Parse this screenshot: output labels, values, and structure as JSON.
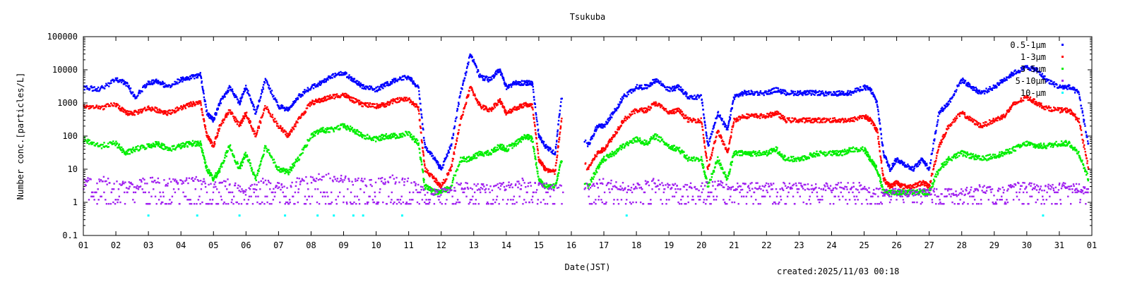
{
  "chart_data": {
    "type": "scatter",
    "title": "Tsukuba",
    "xlabel": "Date(JST)",
    "ylabel": "Number conc.[particles/L]",
    "footer": "created:2025/11/03 00:18",
    "xlim": [
      1,
      32
    ],
    "ylim": [
      0.1,
      100000
    ],
    "yscale": "log",
    "yticks": [
      0.1,
      1,
      10,
      100,
      1000,
      10000,
      100000
    ],
    "ytick_labels": [
      "0.1",
      "1",
      "10",
      "100",
      "1000",
      "10000",
      "100000"
    ],
    "xticks": [
      1,
      2,
      3,
      4,
      5,
      6,
      7,
      8,
      9,
      10,
      11,
      12,
      13,
      14,
      15,
      16,
      17,
      18,
      19,
      20,
      21,
      22,
      23,
      24,
      25,
      26,
      27,
      28,
      29,
      30,
      31,
      32
    ],
    "xtick_labels": [
      "01",
      "02",
      "03",
      "04",
      "05",
      "06",
      "07",
      "08",
      "09",
      "10",
      "11",
      "12",
      "13",
      "14",
      "15",
      "16",
      "17",
      "18",
      "19",
      "20",
      "21",
      "22",
      "23",
      "24",
      "25",
      "26",
      "27",
      "28",
      "29",
      "30",
      "31",
      "01"
    ],
    "gaps": [
      [
        15.75,
        16.4
      ]
    ],
    "legend_position": "top-right",
    "series": [
      {
        "name": "0.5-1μm",
        "color": "#0000ff",
        "x": [
          1,
          1.5,
          2,
          2.3,
          2.6,
          3,
          3.3,
          3.6,
          4,
          4.3,
          4.6,
          4.8,
          5,
          5.2,
          5.5,
          5.8,
          6,
          6.3,
          6.6,
          7,
          7.3,
          7.6,
          8,
          8.3,
          8.6,
          9,
          9.3,
          9.6,
          10,
          10.3,
          10.6,
          11,
          11.3,
          11.5,
          11.8,
          12,
          12.3,
          12.6,
          12.9,
          13.2,
          13.5,
          13.8,
          14,
          14.3,
          14.6,
          14.8,
          15,
          15.2,
          15.5,
          15.7,
          16.5,
          16.8,
          17,
          17.3,
          17.6,
          18,
          18.3,
          18.6,
          19,
          19.3,
          19.6,
          20,
          20.2,
          20.5,
          20.8,
          21,
          21.3,
          21.6,
          22,
          22.3,
          22.6,
          23,
          23.3,
          23.6,
          24,
          24.3,
          24.6,
          25,
          25.2,
          25.4,
          25.6,
          25.8,
          26,
          26.2,
          26.5,
          26.8,
          27,
          27.3,
          27.6,
          28,
          28.3,
          28.6,
          29,
          29.3,
          29.6,
          30,
          30.3,
          30.6,
          31,
          31.3,
          31.6,
          31.9
        ],
        "y": [
          3000,
          2500,
          5000,
          4000,
          1500,
          4000,
          4500,
          3000,
          5000,
          6000,
          7000,
          500,
          300,
          1000,
          3000,
          1000,
          3000,
          500,
          5000,
          800,
          600,
          1500,
          3000,
          4000,
          6000,
          8000,
          5000,
          3000,
          2500,
          3500,
          5000,
          6000,
          3000,
          50,
          20,
          10,
          50,
          2000,
          30000,
          6000,
          5000,
          10000,
          3000,
          4000,
          4000,
          4000,
          100,
          50,
          30,
          1500,
          50,
          200,
          200,
          500,
          1500,
          3000,
          3000,
          5000,
          2500,
          3000,
          1500,
          1500,
          50,
          500,
          150,
          1500,
          2000,
          2000,
          2000,
          2500,
          2000,
          2000,
          2000,
          2000,
          1800,
          2000,
          2000,
          3000,
          2500,
          1000,
          30,
          10,
          20,
          15,
          10,
          20,
          10,
          500,
          1000,
          5000,
          3000,
          2000,
          3000,
          5000,
          8000,
          12000,
          10000,
          5000,
          3000,
          3000,
          2000,
          50
        ]
      },
      {
        "name": "1-3μm",
        "color": "#ff0000",
        "x": [
          1,
          1.5,
          2,
          2.3,
          2.6,
          3,
          3.3,
          3.6,
          4,
          4.3,
          4.6,
          4.8,
          5,
          5.2,
          5.5,
          5.8,
          6,
          6.3,
          6.6,
          7,
          7.3,
          7.6,
          8,
          8.3,
          8.6,
          9,
          9.3,
          9.6,
          10,
          10.3,
          10.6,
          11,
          11.3,
          11.5,
          11.8,
          12,
          12.3,
          12.6,
          12.9,
          13.2,
          13.5,
          13.8,
          14,
          14.3,
          14.6,
          14.8,
          15,
          15.2,
          15.5,
          15.7,
          16.5,
          16.8,
          17,
          17.3,
          17.6,
          18,
          18.3,
          18.6,
          19,
          19.3,
          19.6,
          20,
          20.2,
          20.5,
          20.8,
          21,
          21.3,
          21.6,
          22,
          22.3,
          22.6,
          23,
          23.3,
          23.6,
          24,
          24.3,
          24.6,
          25,
          25.2,
          25.4,
          25.6,
          25.8,
          26,
          26.2,
          26.5,
          26.8,
          27,
          27.3,
          27.6,
          28,
          28.3,
          28.6,
          29,
          29.3,
          29.6,
          30,
          30.3,
          30.6,
          31,
          31.3,
          31.6,
          31.9
        ],
        "y": [
          800,
          700,
          900,
          500,
          500,
          700,
          600,
          500,
          700,
          900,
          1000,
          100,
          50,
          200,
          600,
          200,
          500,
          100,
          800,
          200,
          100,
          300,
          1000,
          1200,
          1500,
          1800,
          1200,
          900,
          800,
          900,
          1200,
          1300,
          700,
          10,
          5,
          3,
          10,
          300,
          3000,
          800,
          600,
          1200,
          500,
          700,
          900,
          800,
          20,
          10,
          8,
          300,
          10,
          30,
          40,
          100,
          300,
          600,
          600,
          1000,
          500,
          600,
          300,
          300,
          10,
          150,
          30,
          300,
          400,
          400,
          400,
          500,
          300,
          300,
          300,
          300,
          300,
          300,
          300,
          400,
          300,
          150,
          5,
          3,
          4,
          3,
          3,
          4,
          3,
          50,
          200,
          500,
          300,
          200,
          300,
          400,
          900,
          1500,
          1000,
          700,
          600,
          600,
          300,
          10
        ]
      },
      {
        "name": "3-5μm",
        "color": "#00ee00",
        "x": [
          1,
          1.5,
          2,
          2.3,
          2.6,
          3,
          3.3,
          3.6,
          4,
          4.3,
          4.6,
          4.8,
          5,
          5.2,
          5.5,
          5.8,
          6,
          6.3,
          6.6,
          7,
          7.3,
          7.6,
          8,
          8.3,
          8.6,
          9,
          9.3,
          9.6,
          10,
          10.3,
          10.6,
          11,
          11.3,
          11.5,
          11.8,
          12,
          12.3,
          12.6,
          12.9,
          13.2,
          13.5,
          13.8,
          14,
          14.3,
          14.6,
          14.8,
          15,
          15.2,
          15.5,
          15.7,
          16.5,
          16.8,
          17,
          17.3,
          17.6,
          18,
          18.3,
          18.6,
          19,
          19.3,
          19.6,
          20,
          20.2,
          20.5,
          20.8,
          21,
          21.3,
          21.6,
          22,
          22.3,
          22.6,
          23,
          23.3,
          23.6,
          24,
          24.3,
          24.6,
          25,
          25.2,
          25.4,
          25.6,
          25.8,
          26,
          26.2,
          26.5,
          26.8,
          27,
          27.3,
          27.6,
          28,
          28.3,
          28.6,
          29,
          29.3,
          29.6,
          30,
          30.3,
          30.6,
          31,
          31.3,
          31.6,
          31.9
        ],
        "y": [
          80,
          50,
          60,
          30,
          40,
          50,
          60,
          40,
          50,
          60,
          60,
          10,
          5,
          10,
          50,
          10,
          30,
          5,
          50,
          10,
          8,
          20,
          100,
          150,
          150,
          200,
          150,
          100,
          80,
          100,
          100,
          120,
          60,
          3,
          2,
          2,
          3,
          20,
          20,
          30,
          30,
          50,
          40,
          60,
          100,
          80,
          5,
          3,
          3,
          20,
          3,
          10,
          20,
          30,
          50,
          80,
          60,
          100,
          50,
          40,
          20,
          20,
          3,
          20,
          5,
          30,
          30,
          30,
          30,
          40,
          20,
          20,
          25,
          30,
          30,
          30,
          40,
          40,
          20,
          10,
          2,
          2,
          2,
          2,
          2,
          2,
          2,
          10,
          20,
          30,
          25,
          20,
          25,
          30,
          40,
          60,
          50,
          50,
          60,
          60,
          30,
          5
        ]
      },
      {
        "name": "5-10μm",
        "color": "#a020f0",
        "x": [
          1,
          1.5,
          2,
          2.5,
          3,
          3.5,
          4,
          4.5,
          5,
          5.5,
          6,
          6.5,
          7,
          7.5,
          8,
          8.5,
          9,
          9.5,
          10,
          10.5,
          11,
          11.5,
          12,
          12.5,
          13,
          13.5,
          14,
          14.5,
          15,
          15.5,
          16.5,
          17,
          17.5,
          18,
          18.5,
          19,
          19.5,
          20,
          20.5,
          21,
          21.5,
          22,
          22.5,
          23,
          23.5,
          24,
          24.5,
          25,
          25.5,
          26,
          26.5,
          27,
          27.5,
          28,
          28.5,
          29,
          29.5,
          30,
          30.5,
          31,
          31.5,
          31.9
        ],
        "y": [
          4,
          5,
          4,
          3,
          5,
          4,
          4,
          5,
          3,
          4,
          2,
          4,
          3,
          4,
          5,
          6,
          5,
          4,
          4,
          5,
          4,
          2,
          2,
          3,
          3,
          3,
          3,
          4,
          3,
          3,
          3,
          4,
          3,
          3,
          4,
          3,
          3,
          3,
          4,
          3,
          3,
          3,
          3,
          3,
          3,
          3,
          3,
          3,
          2,
          2,
          2,
          2,
          2,
          2,
          3,
          2,
          3,
          3,
          3,
          3,
          3,
          2
        ]
      },
      {
        "name": "10-μm",
        "color": "#00ffff",
        "x": [
          3,
          4.5,
          5.8,
          7.2,
          8.2,
          8.7,
          9.3,
          9.6,
          10.8,
          17.7,
          30.5
        ],
        "y": [
          0.4,
          0.4,
          0.4,
          0.4,
          0.4,
          0.4,
          0.4,
          0.4,
          0.4,
          0.4,
          0.4
        ]
      }
    ]
  }
}
